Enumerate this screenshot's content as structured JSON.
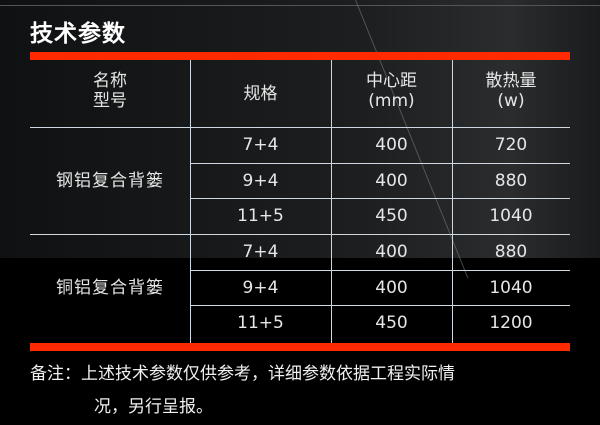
{
  "title": "技术参数",
  "headers": {
    "name": [
      "名称",
      "型号"
    ],
    "spec": "规格",
    "center": [
      "中心距",
      "(mm)"
    ],
    "heat": [
      "散热量",
      "(w)"
    ]
  },
  "groups": [
    {
      "name": "钢铝复合背篓",
      "rows": [
        [
          "7+4",
          "400",
          "720"
        ],
        [
          "9+4",
          "400",
          "880"
        ],
        [
          "11+5",
          "450",
          "1040"
        ]
      ]
    },
    {
      "name": "铜铝复合背篓",
      "rows": [
        [
          "7+4",
          "400",
          "880"
        ],
        [
          "9+4",
          "400",
          "1040"
        ],
        [
          "11+5",
          "450",
          "1200"
        ]
      ]
    }
  ],
  "note": {
    "line1": "备注：上述技术参数仅供参考，详细参数依据工程实际情",
    "line2": "况，另行呈报。"
  },
  "colors": {
    "accent": "#ff2a00"
  }
}
